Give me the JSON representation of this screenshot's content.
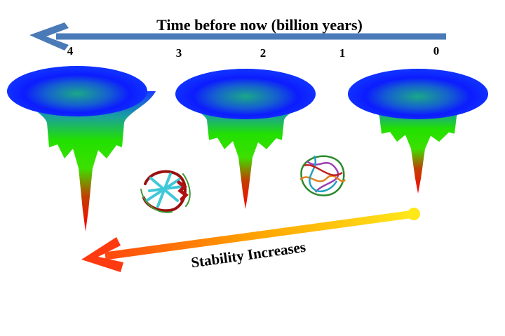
{
  "timeline": {
    "title": "Time before now (billion years)",
    "labels": [
      "4",
      "3",
      "2",
      "1",
      "0"
    ]
  },
  "stability_arrow": {
    "label": "Stability Increases"
  }
}
